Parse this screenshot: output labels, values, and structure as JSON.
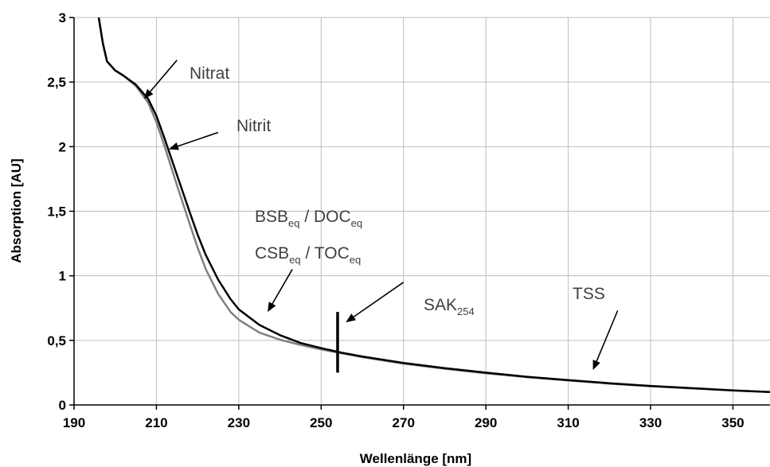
{
  "chart_data": {
    "type": "line",
    "title": "",
    "xlabel": "Wellenlänge [nm]",
    "ylabel": "Absorption [AU]",
    "xlim": [
      190,
      359
    ],
    "ylim": [
      0,
      3
    ],
    "x_ticks": [
      190,
      210,
      230,
      250,
      270,
      290,
      310,
      330,
      350
    ],
    "x_tick_labels": [
      "190",
      "210",
      "230",
      "250",
      "270",
      "290",
      "310",
      "330",
      "350"
    ],
    "y_ticks": [
      0,
      0.5,
      1,
      1.5,
      2,
      2.5,
      3
    ],
    "y_tick_labels": [
      "0",
      "0,5",
      "1",
      "1,5",
      "2",
      "2,5",
      "3"
    ],
    "grid": true,
    "legend": "none",
    "series": [
      {
        "color": "#808080",
        "x": [
          196,
          197,
          198,
          200,
          202,
          205,
          208,
          210,
          212,
          215,
          218,
          220,
          222,
          225,
          228,
          230,
          235,
          240,
          245,
          250,
          255,
          260,
          270,
          280,
          290,
          300,
          310,
          320,
          330,
          340,
          350,
          359
        ],
        "y": [
          3.0,
          2.8,
          2.66,
          2.59,
          2.55,
          2.47,
          2.34,
          2.19,
          2.0,
          1.7,
          1.41,
          1.22,
          1.05,
          0.86,
          0.72,
          0.66,
          0.56,
          0.505,
          0.465,
          0.43,
          0.4,
          0.37,
          0.32,
          0.28,
          0.245,
          0.215,
          0.19,
          0.165,
          0.145,
          0.128,
          0.112,
          0.1
        ]
      },
      {
        "color": "#000000",
        "x": [
          196,
          197,
          198,
          200,
          202,
          205,
          208,
          210,
          212,
          215,
          218,
          220,
          222,
          225,
          228,
          230,
          235,
          240,
          245,
          250,
          255,
          260,
          270,
          280,
          290,
          300,
          310,
          320,
          330,
          340,
          350,
          359
        ],
        "y": [
          3.0,
          2.8,
          2.66,
          2.59,
          2.55,
          2.48,
          2.37,
          2.24,
          2.06,
          1.78,
          1.5,
          1.32,
          1.16,
          0.97,
          0.82,
          0.74,
          0.62,
          0.54,
          0.48,
          0.44,
          0.405,
          0.375,
          0.325,
          0.285,
          0.25,
          0.218,
          0.192,
          0.168,
          0.147,
          0.13,
          0.113,
          0.1
        ]
      }
    ],
    "marker": {
      "label": "SAK",
      "sub": "254",
      "x": 254,
      "y_range": [
        0.25,
        0.72
      ]
    },
    "annotations": [
      {
        "text": "Nitrat",
        "sub": ""
      },
      {
        "text": "Nitrit",
        "sub": ""
      },
      {
        "text": "BSB",
        "sub": "eq",
        "text2": " / DOC",
        "sub2": "eq"
      },
      {
        "text": "CSB",
        "sub": "eq",
        "text2": " / TOC",
        "sub2": "eq"
      },
      {
        "text": "TSS",
        "sub": ""
      }
    ],
    "arrows": [
      {
        "from": [
          215,
          2.67
        ],
        "to": [
          207,
          2.37
        ]
      },
      {
        "from": [
          225,
          2.11
        ],
        "to": [
          213,
          1.98
        ]
      },
      {
        "from": [
          243,
          1.05
        ],
        "to": [
          237,
          0.72
        ]
      },
      {
        "from": [
          270,
          0.95
        ],
        "to": [
          256,
          0.64
        ]
      },
      {
        "from": [
          322,
          0.73
        ],
        "to": [
          316,
          0.27
        ]
      }
    ]
  }
}
